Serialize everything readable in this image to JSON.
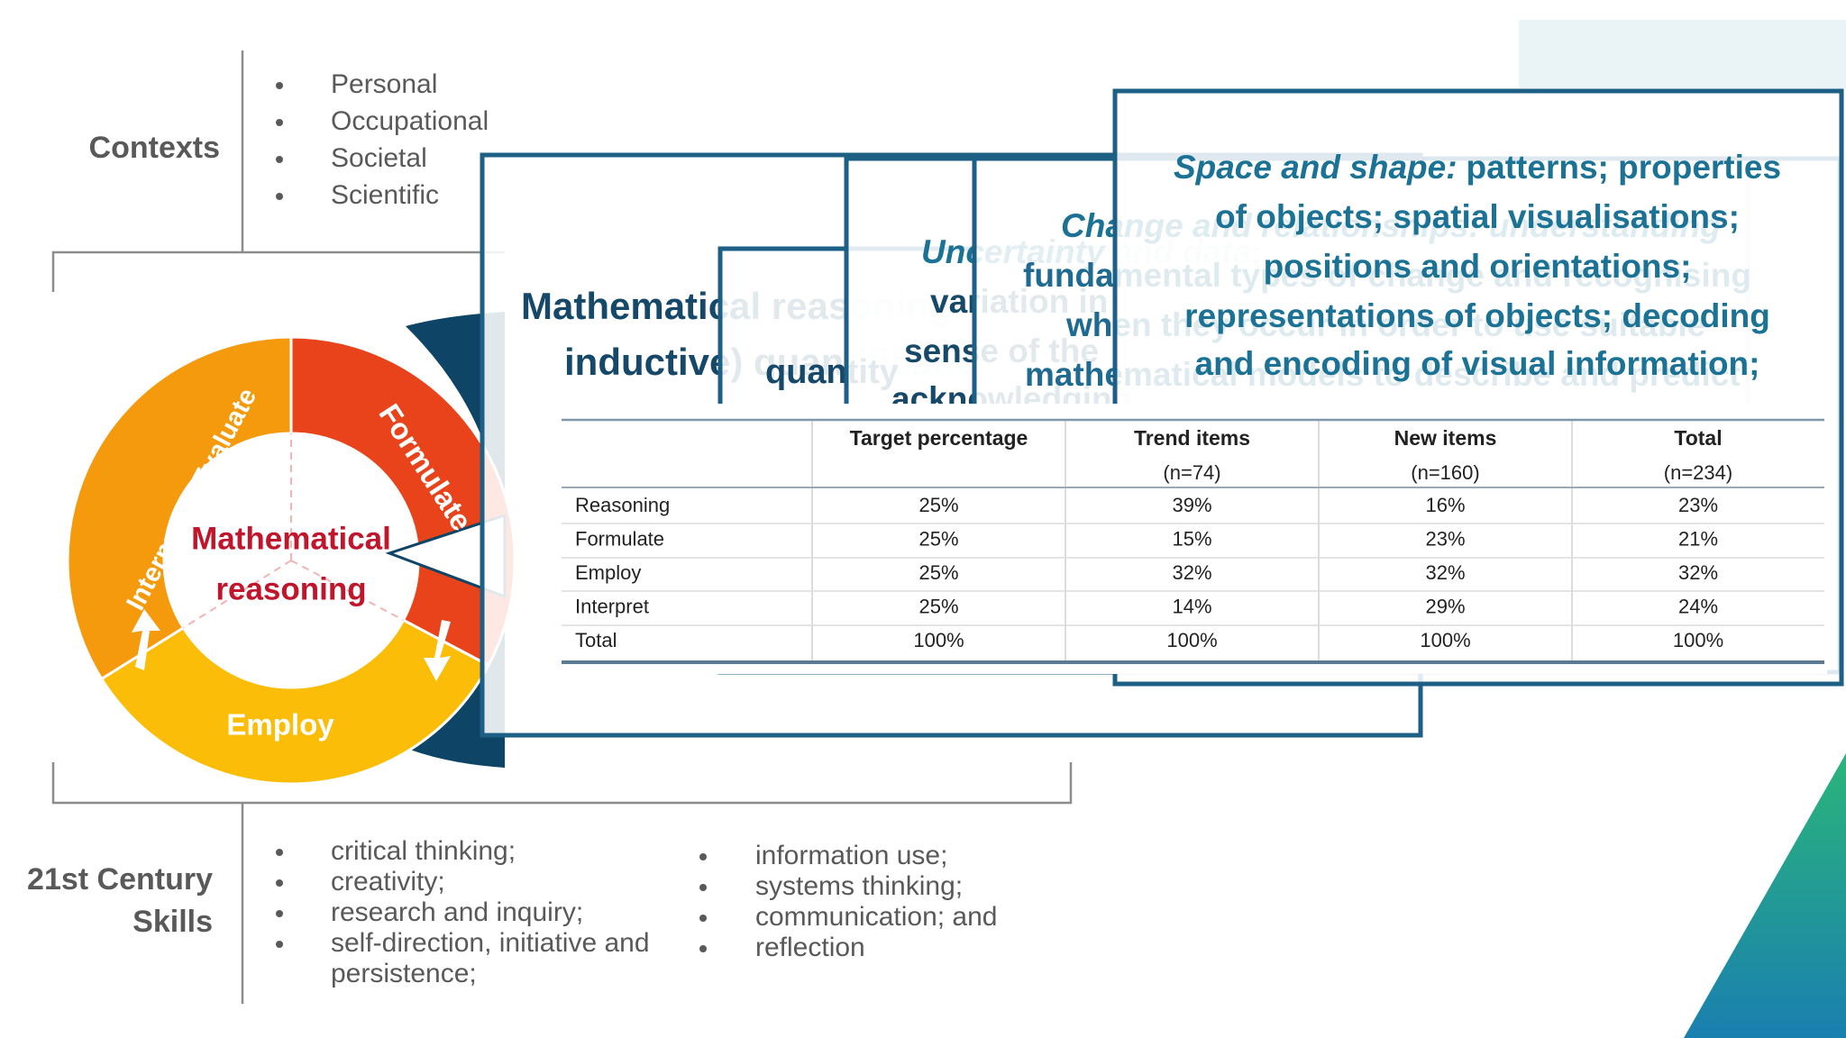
{
  "contexts": {
    "label": "Contexts",
    "items": [
      "Personal",
      "Occupational",
      "Societal",
      "Scientific"
    ]
  },
  "skills": {
    "label_lines": [
      "21st Century",
      "Skills"
    ],
    "column1": [
      "critical thinking;",
      "creativity;",
      "research and inquiry;",
      "self-direction, initiative and",
      "persistence;"
    ],
    "column2": [
      "information use;",
      "systems thinking;",
      "communication; and",
      "reflection"
    ]
  },
  "cycle": {
    "center_lines": [
      "Mathematical",
      "reasoning"
    ],
    "formulate": "Formulate",
    "employ": "Employ",
    "interpret": "Interpret & Evaluate"
  },
  "cards": [
    {
      "lines": [
        "Mathematical reasoning",
        "inductive) quantification"
      ]
    },
    {
      "lines": [
        "quantity"
      ]
    },
    {
      "lines": [
        "Uncertainty and data:",
        "variation in",
        "sense of the",
        "acknowledging"
      ]
    },
    {
      "lines": [
        "Change and relationships: understanding",
        "fundamental types of change and recognising",
        "when they occur in order to use suitable",
        "mathematical models to describe and predict"
      ]
    }
  ],
  "front_card": {
    "lead": "Space and shape:",
    "lines": [
      "patterns; properties",
      "of objects; spatial visualisations;",
      "positions and orientations;",
      "representations of objects; decoding",
      "and encoding of visual information;"
    ]
  },
  "table": {
    "columns": [
      {
        "title": "Target percentage"
      },
      {
        "title": "Trend items",
        "n": "(n=74)"
      },
      {
        "title": "New items",
        "n": "(n=160)"
      },
      {
        "title": "Total",
        "n": "(n=234)"
      }
    ],
    "rows": [
      [
        "Reasoning",
        "25%",
        "39%",
        "16%",
        "23%"
      ],
      [
        "Formulate",
        "25%",
        "15%",
        "23%",
        "21%"
      ],
      [
        "Employ",
        "25%",
        "32%",
        "32%",
        "32%"
      ],
      [
        "Interpret",
        "25%",
        "14%",
        "29%",
        "24%"
      ],
      [
        "Total",
        "100%",
        "100%",
        "100%",
        "100%"
      ]
    ]
  }
}
